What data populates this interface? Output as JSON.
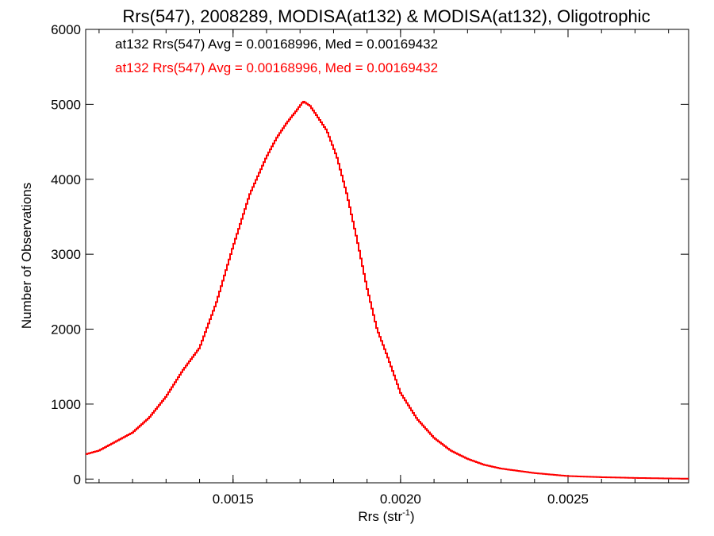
{
  "chart_data": {
    "type": "line",
    "style": "step-histogram",
    "title": "Rrs(547), 2008289, MODISA(at132) & MODISA(at132), Oligotrophic",
    "xlabel_base": "Rrs (str",
    "xlabel_sup": "-1",
    "xlabel_end": ")",
    "ylabel": "Number of Observations",
    "xlim": [
      0.00106,
      0.00286
    ],
    "ylim": [
      -50,
      6000
    ],
    "x_ticks": [
      0.0015,
      0.002,
      0.0025
    ],
    "x_tick_labels": [
      "0.0015",
      "0.0020",
      "0.0025"
    ],
    "y_ticks": [
      0,
      1000,
      2000,
      3000,
      4000,
      5000,
      6000
    ],
    "y_tick_labels": [
      "0",
      "1000",
      "2000",
      "3000",
      "4000",
      "5000",
      "6000"
    ],
    "grid": false,
    "annotations": [
      {
        "text": "at132 Rrs(547) Avg = 0.00168996, Med = 0.00169432",
        "color": "#000000"
      },
      {
        "text": "at132 Rrs(547) Avg = 0.00168996, Med = 0.00169432",
        "color": "#ff0000"
      }
    ],
    "series": [
      {
        "color": "#ff0000",
        "x": [
          0.00106,
          0.0011,
          0.00115,
          0.0012,
          0.00125,
          0.0013,
          0.00135,
          0.0014,
          0.00145,
          0.0015,
          0.00155,
          0.0016,
          0.00163,
          0.00166,
          0.00169,
          0.00171,
          0.00173,
          0.00175,
          0.00178,
          0.00181,
          0.00184,
          0.00187,
          0.0019,
          0.00193,
          0.00196,
          0.002,
          0.00205,
          0.0021,
          0.00215,
          0.0022,
          0.00225,
          0.0023,
          0.00235,
          0.0024,
          0.00245,
          0.0025,
          0.0026,
          0.0027,
          0.0028,
          0.00286
        ],
        "y": [
          330,
          380,
          500,
          620,
          820,
          1100,
          1450,
          1750,
          2350,
          3100,
          3800,
          4300,
          4550,
          4750,
          4920,
          5040,
          4980,
          4850,
          4650,
          4300,
          3800,
          3200,
          2550,
          2000,
          1650,
          1150,
          800,
          550,
          380,
          270,
          190,
          140,
          110,
          80,
          60,
          40,
          25,
          15,
          8,
          5
        ]
      }
    ]
  }
}
